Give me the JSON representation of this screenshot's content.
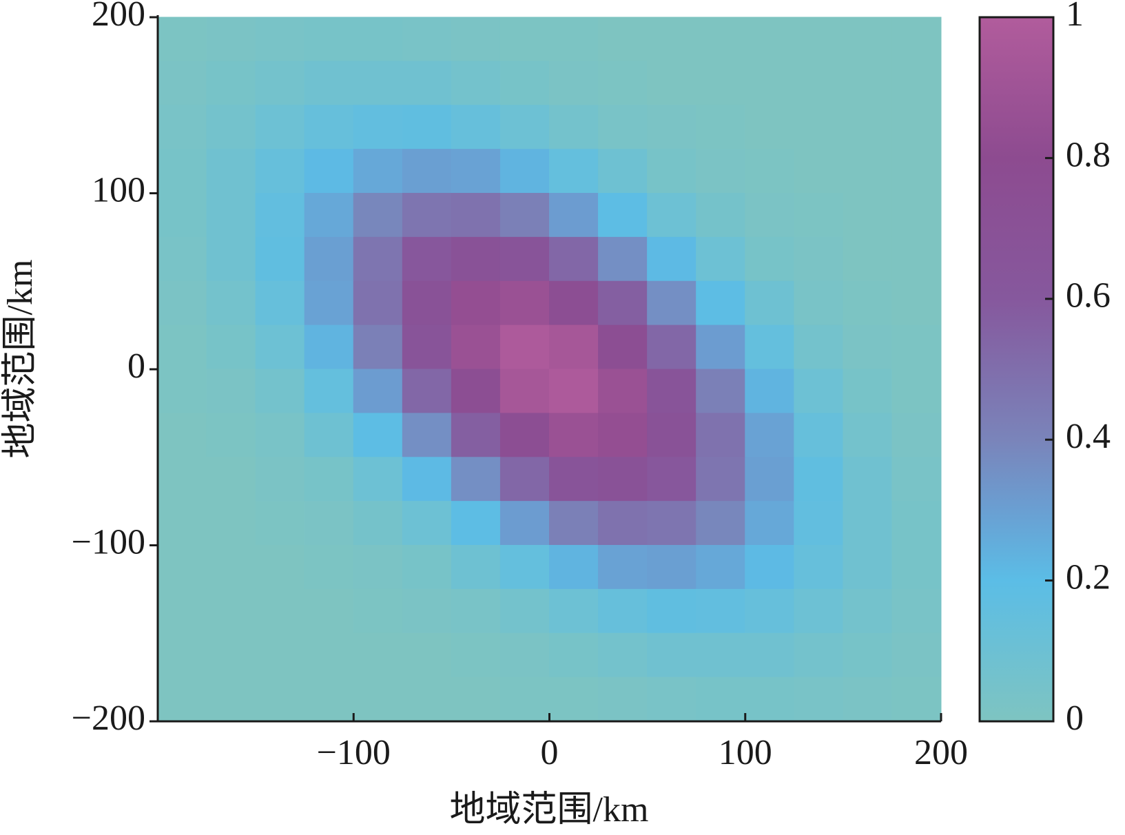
{
  "chart_data": {
    "type": "heatmap",
    "xlabel": "地域范围/km",
    "ylabel": "地域范围/km",
    "xlim": [
      -200,
      200
    ],
    "ylim": [
      -200,
      200
    ],
    "xticks": [
      {
        "value": -100,
        "label": "−100"
      },
      0,
      100,
      200
    ],
    "yticks": [
      {
        "value": -200,
        "label": "−200"
      },
      {
        "value": -100,
        "label": "−100"
      },
      0,
      100,
      200
    ],
    "x": [
      -187.5,
      -162.5,
      -137.5,
      -112.5,
      -87.5,
      -62.5,
      -37.5,
      -12.5,
      12.5,
      37.5,
      62.5,
      87.5,
      112.5,
      137.5,
      162.5,
      187.5
    ],
    "y": [
      187.5,
      162.5,
      137.5,
      112.5,
      87.5,
      62.5,
      37.5,
      12.5,
      -12.5,
      -37.5,
      -62.5,
      -87.5,
      -112.5,
      -137.5,
      -162.5,
      -187.5
    ],
    "z": [
      [
        0.01,
        0.02,
        0.03,
        0.04,
        0.04,
        0.03,
        0.02,
        0.01,
        0.01,
        0,
        0,
        0,
        0,
        0,
        0,
        0
      ],
      [
        0.02,
        0.04,
        0.06,
        0.08,
        0.08,
        0.08,
        0.06,
        0.04,
        0.02,
        0.01,
        0,
        0,
        0,
        0,
        0,
        0
      ],
      [
        0.03,
        0.06,
        0.1,
        0.14,
        0.16,
        0.17,
        0.14,
        0.1,
        0.06,
        0.03,
        0.02,
        0.01,
        0,
        0,
        0,
        0
      ],
      [
        0.04,
        0.08,
        0.14,
        0.21,
        0.27,
        0.3,
        0.29,
        0.23,
        0.15,
        0.09,
        0.04,
        0.02,
        0.01,
        0,
        0,
        0
      ],
      [
        0.04,
        0.08,
        0.16,
        0.27,
        0.39,
        0.47,
        0.48,
        0.42,
        0.31,
        0.19,
        0.1,
        0.05,
        0.02,
        0.01,
        0,
        0
      ],
      [
        0.03,
        0.08,
        0.17,
        0.3,
        0.47,
        0.62,
        0.69,
        0.66,
        0.53,
        0.36,
        0.21,
        0.1,
        0.04,
        0.02,
        0,
        0
      ],
      [
        0.02,
        0.06,
        0.14,
        0.29,
        0.48,
        0.69,
        0.84,
        0.87,
        0.76,
        0.57,
        0.36,
        0.19,
        0.09,
        0.03,
        0.01,
        0
      ],
      [
        0.01,
        0.04,
        0.1,
        0.23,
        0.42,
        0.66,
        0.87,
        0.98,
        0.94,
        0.76,
        0.53,
        0.31,
        0.15,
        0.06,
        0.02,
        0.01
      ],
      [
        0.01,
        0.02,
        0.06,
        0.15,
        0.31,
        0.53,
        0.76,
        0.94,
        0.98,
        0.87,
        0.66,
        0.42,
        0.23,
        0.1,
        0.04,
        0.01
      ],
      [
        0,
        0.01,
        0.03,
        0.09,
        0.19,
        0.36,
        0.57,
        0.76,
        0.87,
        0.84,
        0.69,
        0.48,
        0.29,
        0.14,
        0.06,
        0.02
      ],
      [
        0,
        0,
        0.02,
        0.04,
        0.1,
        0.21,
        0.36,
        0.53,
        0.66,
        0.69,
        0.62,
        0.47,
        0.3,
        0.17,
        0.08,
        0.03
      ],
      [
        0,
        0,
        0.01,
        0.02,
        0.05,
        0.1,
        0.19,
        0.31,
        0.42,
        0.48,
        0.47,
        0.39,
        0.27,
        0.16,
        0.08,
        0.04
      ],
      [
        0,
        0,
        0,
        0.01,
        0.02,
        0.04,
        0.09,
        0.15,
        0.23,
        0.29,
        0.3,
        0.27,
        0.21,
        0.14,
        0.08,
        0.04
      ],
      [
        0,
        0,
        0,
        0,
        0.01,
        0.02,
        0.03,
        0.06,
        0.1,
        0.14,
        0.17,
        0.16,
        0.14,
        0.1,
        0.06,
        0.03
      ],
      [
        0,
        0,
        0,
        0,
        0,
        0,
        0.01,
        0.02,
        0.04,
        0.06,
        0.08,
        0.08,
        0.08,
        0.06,
        0.04,
        0.02
      ],
      [
        0,
        0,
        0,
        0,
        0,
        0,
        0,
        0.01,
        0.01,
        0.02,
        0.03,
        0.04,
        0.04,
        0.03,
        0.02,
        0.01
      ]
    ],
    "clim": [
      0,
      1
    ],
    "cticks": [
      0,
      0.2,
      0.4,
      0.6,
      0.8,
      1
    ],
    "colormap": [
      {
        "value": 0,
        "color": "#7ec4c1"
      },
      {
        "value": 0.2,
        "color": "#5bbde6"
      },
      {
        "value": 0.3,
        "color": "#6a9fd2"
      },
      {
        "value": 0.4,
        "color": "#7a84ba"
      },
      {
        "value": 0.6,
        "color": "#86589d"
      },
      {
        "value": 0.8,
        "color": "#8d4b90"
      },
      {
        "value": 1,
        "color": "#b15c9c"
      }
    ]
  }
}
